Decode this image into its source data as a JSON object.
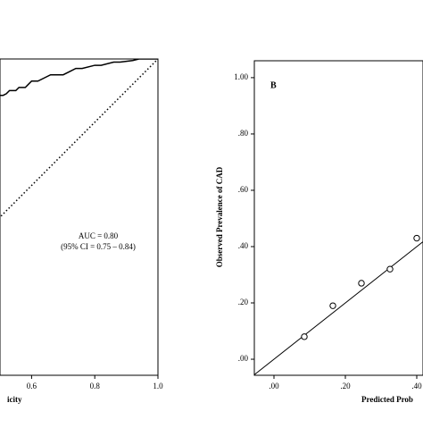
{
  "chart_data": [
    {
      "type": "line",
      "x_label": "icity",
      "annotations": [
        "AUC = 0.80",
        "(95% CI = 0.75 – 0.84)"
      ],
      "xlim": [
        0.5,
        1.0
      ],
      "ylim": [
        0,
        1
      ],
      "xticks": [
        0.6,
        0.8,
        {
          "value": 1.0,
          "label": "1.0"
        }
      ],
      "diagonal": true,
      "series": [
        {
          "color": "#000000",
          "x": [
            0.5,
            0.51,
            0.52,
            0.53,
            0.55,
            0.56,
            0.58,
            0.59,
            0.6,
            0.62,
            0.64,
            0.66,
            0.7,
            0.72,
            0.74,
            0.76,
            0.8,
            0.82,
            0.86,
            0.88,
            0.92,
            0.94,
            1.0
          ],
          "values": [
            0.885,
            0.885,
            0.89,
            0.9,
            0.9,
            0.91,
            0.91,
            0.92,
            0.93,
            0.93,
            0.94,
            0.95,
            0.95,
            0.96,
            0.97,
            0.97,
            0.98,
            0.98,
            0.99,
            0.99,
            0.995,
            1.0,
            1.0
          ]
        }
      ]
    },
    {
      "type": "scatter",
      "panel_label": "B",
      "x_label": "Predicted Prob",
      "y_label": "Observed Prevalence of CAD",
      "xlim": [
        -0.055,
        0.4175
      ],
      "ylim": [
        -0.057,
        1.06
      ],
      "xticks": [
        {
          "value": 0,
          "label": ".00"
        },
        {
          "value": 0.2,
          "label": ".20"
        },
        {
          "value": 0.4,
          "label": ".40"
        }
      ],
      "yticks": [
        {
          "value": 0,
          "label": ".00"
        },
        {
          "value": 0.2,
          "label": ".20"
        },
        {
          "value": 0.4,
          "label": ".40"
        },
        {
          "value": 0.6,
          "label": ".60"
        },
        {
          "value": 0.8,
          "label": ".80"
        },
        {
          "value": 1.0,
          "label": "1.00"
        }
      ],
      "diagonal": true,
      "series": [
        {
          "color": "#000000",
          "x": [
            0.085,
            0.165,
            0.245,
            0.325,
            0.4
          ],
          "values": [
            0.08,
            0.19,
            0.27,
            0.32,
            0.43
          ]
        }
      ]
    }
  ]
}
